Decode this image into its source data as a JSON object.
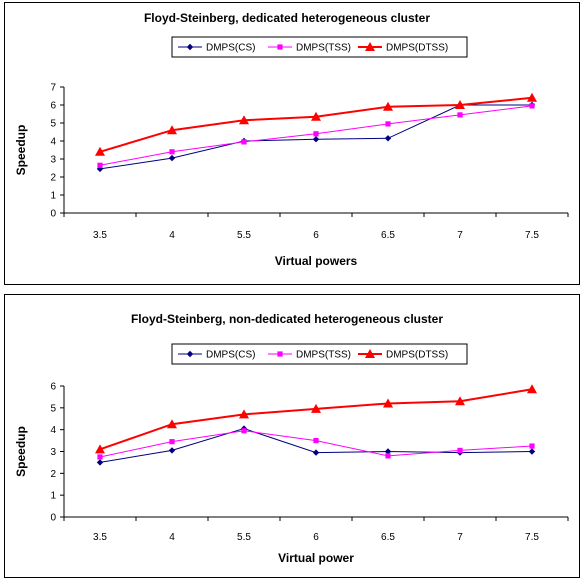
{
  "chart_data": [
    {
      "type": "line",
      "title": "Floyd-Steinberg, dedicated heterogeneous cluster",
      "xlabel": "Virtual powers",
      "ylabel": "Speedup",
      "x": [
        3.5,
        4,
        5.5,
        6,
        6.5,
        7,
        7.5
      ],
      "x_tick_labels": [
        "3.5",
        "4",
        "5.5",
        "6",
        "6.5",
        "7",
        "7.5"
      ],
      "ylim": [
        0,
        7
      ],
      "y_ticks": [
        0,
        1,
        2,
        3,
        4,
        5,
        6,
        7
      ],
      "legend": "top",
      "grid": false,
      "series": [
        {
          "name": "DMPS(CS)",
          "color": "#000080",
          "marker": "diamond",
          "values": [
            2.45,
            3.05,
            4.0,
            4.1,
            4.15,
            6.0,
            6.0
          ]
        },
        {
          "name": "DMPS(TSS)",
          "color": "#ff00ff",
          "marker": "square",
          "values": [
            2.65,
            3.4,
            3.95,
            4.4,
            4.95,
            5.45,
            5.95
          ]
        },
        {
          "name": "DMPS(DTSS)",
          "color": "#ff0000",
          "marker": "triangle",
          "values": [
            3.4,
            4.6,
            5.15,
            5.35,
            5.9,
            6.0,
            6.4
          ]
        }
      ]
    },
    {
      "type": "line",
      "title": "Floyd-Steinberg, non-dedicated heterogeneous cluster",
      "xlabel": "Virtual power",
      "ylabel": "Speedup",
      "x": [
        3.5,
        4,
        5.5,
        6,
        6.5,
        7,
        7.5
      ],
      "x_tick_labels": [
        "3.5",
        "4",
        "5.5",
        "6",
        "6.5",
        "7",
        "7.5"
      ],
      "ylim": [
        0,
        6
      ],
      "y_ticks": [
        0,
        1,
        2,
        3,
        4,
        5,
        6
      ],
      "legend": "top",
      "grid": false,
      "series": [
        {
          "name": "DMPS(CS)",
          "color": "#000080",
          "marker": "diamond",
          "values": [
            2.5,
            3.05,
            4.05,
            2.95,
            3.0,
            2.95,
            3.0
          ]
        },
        {
          "name": "DMPS(TSS)",
          "color": "#ff00ff",
          "marker": "square",
          "values": [
            2.75,
            3.45,
            3.95,
            3.5,
            2.8,
            3.05,
            3.25
          ]
        },
        {
          "name": "DMPS(DTSS)",
          "color": "#ff0000",
          "marker": "triangle",
          "values": [
            3.1,
            4.25,
            4.7,
            4.95,
            5.2,
            5.3,
            5.85
          ]
        }
      ]
    }
  ]
}
